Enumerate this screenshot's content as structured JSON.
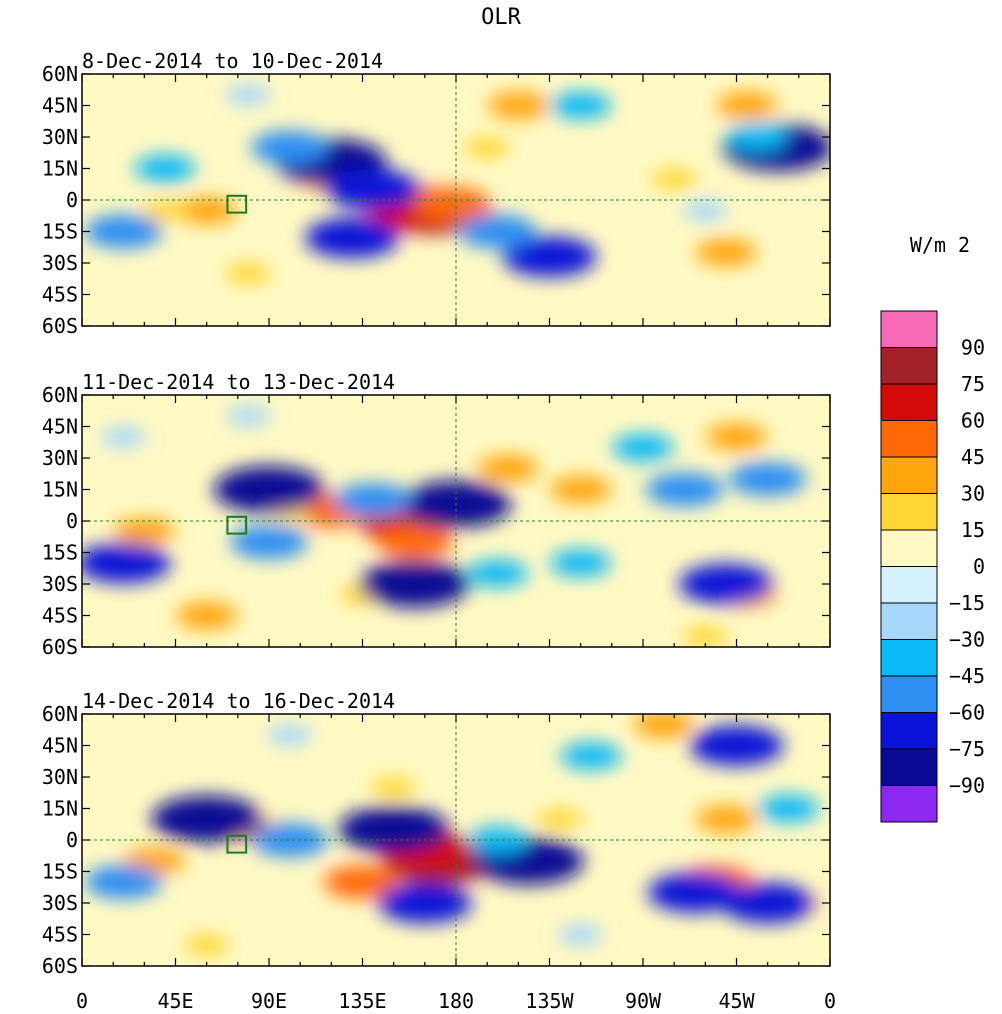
{
  "chart_data": {
    "type": "heatmap",
    "title": "OLR",
    "units_label": "W/m 2",
    "colorbar": {
      "levels": [
        "90",
        "75",
        "60",
        "45",
        "30",
        "15",
        "0",
        "−15",
        "−30",
        "−45",
        "−60",
        "−75",
        "−90"
      ],
      "colors": [
        "#f76bb6",
        "#a3222a",
        "#d20a0a",
        "#ff6a07",
        "#ffa50d",
        "#ffd633",
        "#fff9c4",
        "#d5f1fb",
        "#a7d7fb",
        "#0ab9f6",
        "#2f8ff2",
        "#0a12d7",
        "#0a0a94",
        "#8c28f0"
      ]
    },
    "x_ticks": [
      "0",
      "45E",
      "90E",
      "135E",
      "180",
      "135W",
      "90W",
      "45W",
      "0"
    ],
    "y_ticks": [
      "60N",
      "45N",
      "30N",
      "15N",
      "0",
      "15S",
      "30S",
      "45S",
      "60S"
    ],
    "xlim": [
      0,
      360
    ],
    "ylim": [
      -60,
      60
    ],
    "panels": [
      {
        "title": "8-Dec-2014 to 10-Dec-2014",
        "anomalies": [
          {
            "lon": 170,
            "lat": -5,
            "value": 75
          },
          {
            "lon": 160,
            "lat": -5,
            "value": 60
          },
          {
            "lon": 178,
            "lat": -2,
            "value": 45
          },
          {
            "lon": 115,
            "lat": 15,
            "value": 45
          },
          {
            "lon": 120,
            "lat": 10,
            "value": 30
          },
          {
            "lon": 60,
            "lat": -5,
            "value": 30
          },
          {
            "lon": 40,
            "lat": -5,
            "value": 15
          },
          {
            "lon": 210,
            "lat": 45,
            "value": 30
          },
          {
            "lon": 195,
            "lat": 25,
            "value": 15
          },
          {
            "lon": 310,
            "lat": -25,
            "value": 30
          },
          {
            "lon": 320,
            "lat": 45,
            "value": 30
          },
          {
            "lon": 285,
            "lat": 10,
            "value": 15
          },
          {
            "lon": 80,
            "lat": -35,
            "value": 15
          },
          {
            "lon": 120,
            "lat": 18,
            "value": -75
          },
          {
            "lon": 335,
            "lat": 25,
            "value": -75
          },
          {
            "lon": 225,
            "lat": -27,
            "value": -60
          },
          {
            "lon": 200,
            "lat": -15,
            "value": -45
          },
          {
            "lon": 130,
            "lat": -18,
            "value": -60
          },
          {
            "lon": 140,
            "lat": 5,
            "value": -60
          },
          {
            "lon": 20,
            "lat": -15,
            "value": -45
          },
          {
            "lon": 100,
            "lat": 25,
            "value": -45
          },
          {
            "lon": 325,
            "lat": 30,
            "value": -30
          },
          {
            "lon": 240,
            "lat": 45,
            "value": -30
          },
          {
            "lon": 40,
            "lat": 15,
            "value": -30
          },
          {
            "lon": 80,
            "lat": 50,
            "value": -15
          },
          {
            "lon": 300,
            "lat": -5,
            "value": -15
          }
        ]
      },
      {
        "title": "11-Dec-2014 to 13-Dec-2014",
        "anomalies": [
          {
            "lon": 155,
            "lat": 0,
            "value": 60
          },
          {
            "lon": 160,
            "lat": -10,
            "value": 45
          },
          {
            "lon": 120,
            "lat": 5,
            "value": 45
          },
          {
            "lon": 30,
            "lat": -5,
            "value": 30
          },
          {
            "lon": 240,
            "lat": 15,
            "value": 30
          },
          {
            "lon": 205,
            "lat": 25,
            "value": 30
          },
          {
            "lon": 315,
            "lat": 40,
            "value": 30
          },
          {
            "lon": 320,
            "lat": -35,
            "value": 30
          },
          {
            "lon": 60,
            "lat": -45,
            "value": 30
          },
          {
            "lon": 100,
            "lat": 5,
            "value": 15
          },
          {
            "lon": 300,
            "lat": -55,
            "value": 15
          },
          {
            "lon": 135,
            "lat": -35,
            "value": 15
          },
          {
            "lon": 90,
            "lat": 15,
            "value": -75
          },
          {
            "lon": 160,
            "lat": -30,
            "value": -75
          },
          {
            "lon": 180,
            "lat": 8,
            "value": -75
          },
          {
            "lon": 310,
            "lat": -30,
            "value": -60
          },
          {
            "lon": 20,
            "lat": -20,
            "value": -60
          },
          {
            "lon": 330,
            "lat": 20,
            "value": -45
          },
          {
            "lon": 290,
            "lat": 15,
            "value": -45
          },
          {
            "lon": 90,
            "lat": -10,
            "value": -45
          },
          {
            "lon": 140,
            "lat": 10,
            "value": -45
          },
          {
            "lon": 200,
            "lat": -25,
            "value": -30
          },
          {
            "lon": 240,
            "lat": -20,
            "value": -30
          },
          {
            "lon": 270,
            "lat": 35,
            "value": -30
          },
          {
            "lon": 80,
            "lat": 50,
            "value": -15
          },
          {
            "lon": 20,
            "lat": 40,
            "value": -15
          }
        ]
      },
      {
        "title": "14-Dec-2014 to 16-Dec-2014",
        "anomalies": [
          {
            "lon": 172,
            "lat": -10,
            "value": 75
          },
          {
            "lon": 165,
            "lat": -5,
            "value": 60
          },
          {
            "lon": 135,
            "lat": -20,
            "value": 45
          },
          {
            "lon": 305,
            "lat": -20,
            "value": 45
          },
          {
            "lon": 340,
            "lat": -30,
            "value": 30
          },
          {
            "lon": 35,
            "lat": -10,
            "value": 30
          },
          {
            "lon": 80,
            "lat": 5,
            "value": 30
          },
          {
            "lon": 150,
            "lat": 25,
            "value": 15
          },
          {
            "lon": 310,
            "lat": 10,
            "value": 30
          },
          {
            "lon": 280,
            "lat": 55,
            "value": 30
          },
          {
            "lon": 230,
            "lat": 10,
            "value": 15
          },
          {
            "lon": 60,
            "lat": -50,
            "value": 15
          },
          {
            "lon": 60,
            "lat": 10,
            "value": -75
          },
          {
            "lon": 150,
            "lat": 5,
            "value": -75
          },
          {
            "lon": 215,
            "lat": -10,
            "value": -75
          },
          {
            "lon": 165,
            "lat": -30,
            "value": -60
          },
          {
            "lon": 330,
            "lat": -30,
            "value": -60
          },
          {
            "lon": 295,
            "lat": -25,
            "value": -60
          },
          {
            "lon": 315,
            "lat": 45,
            "value": -60
          },
          {
            "lon": 20,
            "lat": -20,
            "value": -45
          },
          {
            "lon": 100,
            "lat": 0,
            "value": -45
          },
          {
            "lon": 200,
            "lat": 0,
            "value": -30
          },
          {
            "lon": 340,
            "lat": 15,
            "value": -30
          },
          {
            "lon": 245,
            "lat": 40,
            "value": -30
          },
          {
            "lon": 100,
            "lat": 50,
            "value": -15
          },
          {
            "lon": 240,
            "lat": -45,
            "value": -15
          }
        ]
      }
    ]
  }
}
